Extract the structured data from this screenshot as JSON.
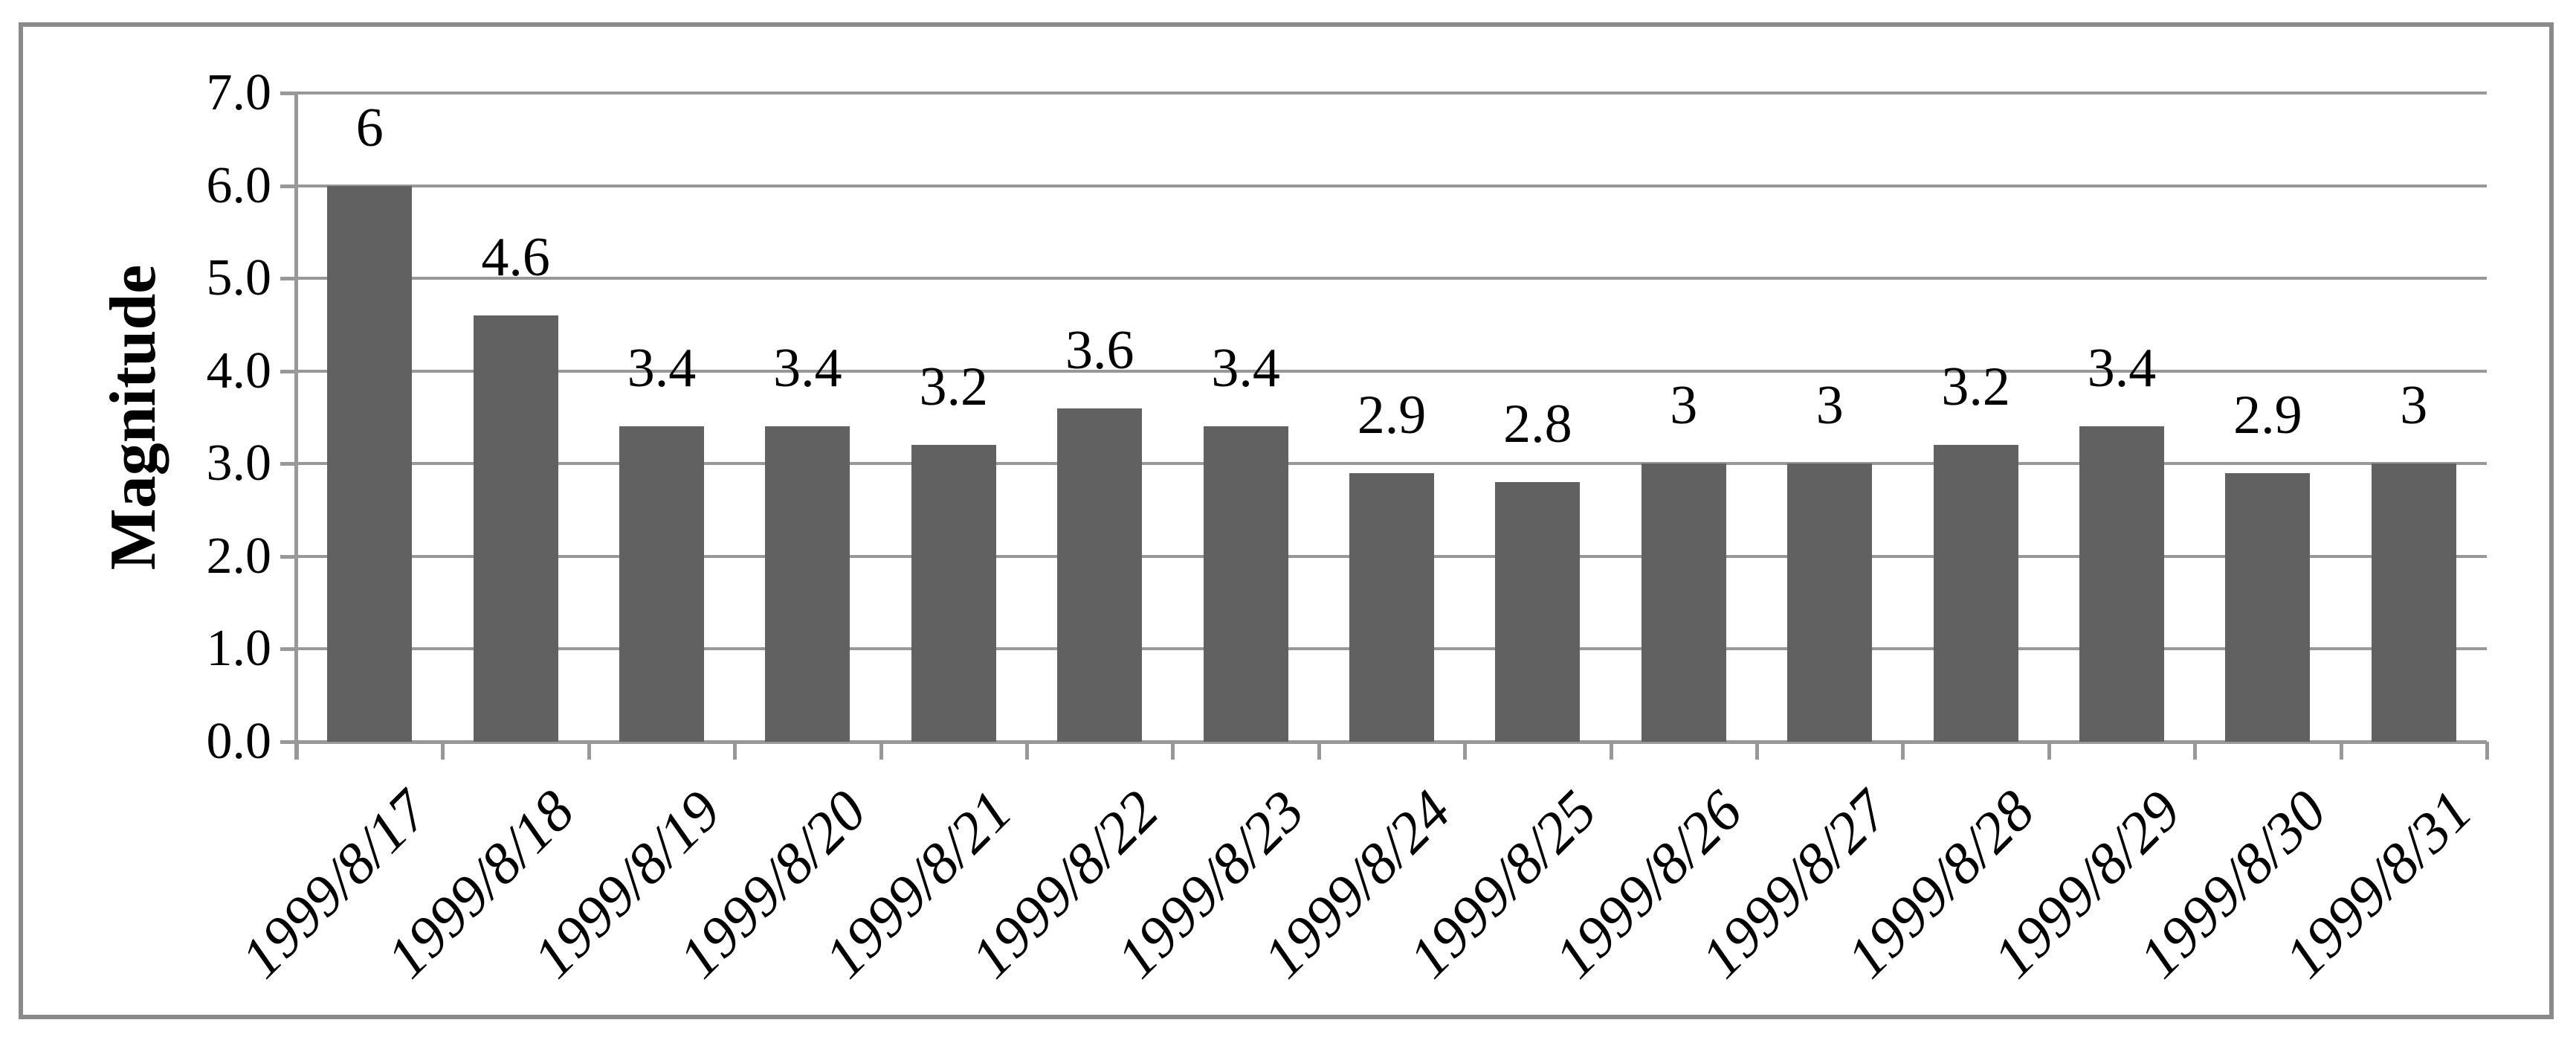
{
  "chart_data": {
    "type": "bar",
    "title": "",
    "xlabel": "",
    "ylabel": "Magnitude",
    "categories": [
      "1999/8/17",
      "1999/8/18",
      "1999/8/19",
      "1999/8/20",
      "1999/8/21",
      "1999/8/22",
      "1999/8/23",
      "1999/8/24",
      "1999/8/25",
      "1999/8/26",
      "1999/8/27",
      "1999/8/28",
      "1999/8/29",
      "1999/8/30",
      "1999/8/31"
    ],
    "values": [
      6,
      4.6,
      3.4,
      3.4,
      3.2,
      3.6,
      3.4,
      2.9,
      2.8,
      3,
      3,
      3.2,
      3.4,
      2.9,
      3
    ],
    "value_labels": [
      "6",
      "4.6",
      "3.4",
      "3.4",
      "3.2",
      "3.6",
      "3.4",
      "2.9",
      "2.8",
      "3",
      "3",
      "3.2",
      "3.4",
      "2.9",
      "3"
    ],
    "ylim": [
      0,
      7
    ],
    "ytick_step": 1.0,
    "ytick_labels": [
      "0.0",
      "1.0",
      "2.0",
      "3.0",
      "4.0",
      "5.0",
      "6.0",
      "7.0"
    ],
    "grid": true,
    "legend_position": "none",
    "colors": {
      "bar": "#616161",
      "gridline": "#989898",
      "axis": "#989898",
      "frame_border": "#8a8a8a",
      "text": "#000000",
      "background": "#ffffff"
    }
  }
}
